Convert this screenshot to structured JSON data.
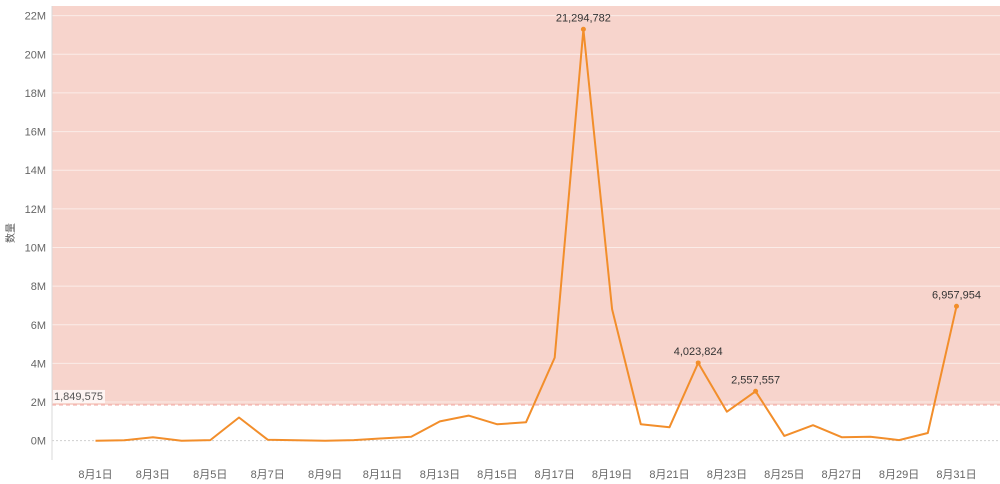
{
  "chart_data": {
    "type": "line",
    "ylabel": "数量",
    "xlabel": "",
    "ylim": [
      -1000000,
      22500000
    ],
    "yticks": [
      0,
      2000000,
      4000000,
      6000000,
      8000000,
      10000000,
      12000000,
      14000000,
      16000000,
      18000000,
      20000000,
      22000000
    ],
    "ytick_labels": [
      "0M",
      "2M",
      "4M",
      "6M",
      "8M",
      "10M",
      "12M",
      "14M",
      "16M",
      "18M",
      "20M",
      "22M"
    ],
    "x": [
      "8月1日",
      "8月2日",
      "8月3日",
      "8月4日",
      "8月5日",
      "8月6日",
      "8月7日",
      "8月8日",
      "8月9日",
      "8月10日",
      "8月11日",
      "8月12日",
      "8月13日",
      "8月14日",
      "8月15日",
      "8月16日",
      "8月17日",
      "8月18日",
      "8月19日",
      "8月20日",
      "8月21日",
      "8月22日",
      "8月23日",
      "8月24日",
      "8月25日",
      "8月26日",
      "8月27日",
      "8月28日",
      "8月29日",
      "8月30日",
      "8月31日"
    ],
    "xtick_labels": [
      "8月1日",
      "8月3日",
      "8月5日",
      "8月7日",
      "8月9日",
      "8月11日",
      "8月13日",
      "8月15日",
      "8月17日",
      "8月19日",
      "8月21日",
      "8月23日",
      "8月25日",
      "8月27日",
      "8月29日",
      "8月31日"
    ],
    "series": [
      {
        "values": [
          0,
          20000,
          180000,
          0,
          30000,
          1200000,
          50000,
          20000,
          0,
          30000,
          120000,
          200000,
          1000000,
          1300000,
          850000,
          950000,
          4300000,
          21294782,
          6800000,
          850000,
          700000,
          4023824,
          1500000,
          2557557,
          250000,
          800000,
          180000,
          200000,
          30000,
          400000,
          6957954
        ]
      }
    ],
    "data_labels": [
      {
        "index": 17,
        "text": "21,294,782"
      },
      {
        "index": 21,
        "text": "4,023,824"
      },
      {
        "index": 23,
        "text": "2,557,557"
      },
      {
        "index": 30,
        "text": "6,957,954"
      }
    ],
    "reference_line": {
      "value": 1849575,
      "label": "1,849,575"
    },
    "grid": true,
    "colors": {
      "line": "#F28E2B",
      "band": "#F7D4CC",
      "ref_line": "#F2A7A2",
      "grid": "#EBEBEB"
    }
  }
}
